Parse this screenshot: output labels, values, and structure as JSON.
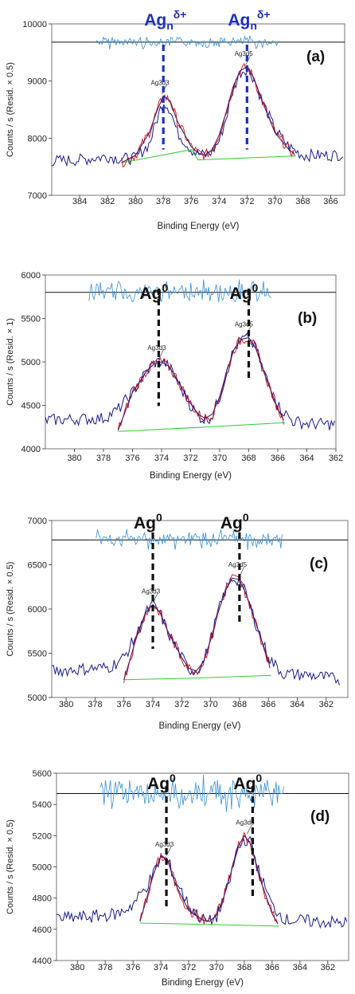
{
  "chart_data": [
    {
      "type": "line",
      "panel_label": "(a)",
      "xlabel": "Binding Energy (eV)",
      "ylabel": "Counts / s  (Resid. × 0.5)",
      "xlim": [
        386,
        365
      ],
      "ylim": [
        7000,
        10000
      ],
      "x_ticks": [
        384,
        382,
        380,
        378,
        376,
        374,
        372,
        370,
        368,
        366
      ],
      "y_ticks": [
        7000,
        8000,
        9000,
        10000
      ],
      "residual_baseline": 9680,
      "series": [
        {
          "role": "raw",
          "color": "#1a1a8c",
          "x": [
            386.0,
            384.0,
            382.0,
            381.0,
            380.0,
            379.0,
            378.5,
            378.0,
            377.5,
            377.0,
            376.0,
            375.5,
            375.0,
            374.5,
            374.0,
            373.5,
            373.0,
            372.5,
            372.0,
            371.5,
            371.0,
            370.0,
            369.0,
            368.0,
            366.0,
            365.0
          ],
          "y": [
            7600,
            7620,
            7680,
            7640,
            7650,
            7900,
            8300,
            8650,
            8500,
            8100,
            7800,
            7720,
            7700,
            7760,
            7950,
            8350,
            8850,
            9150,
            9220,
            9050,
            8700,
            8150,
            7850,
            7700,
            7700,
            7720
          ]
        },
        {
          "role": "envelope",
          "color": "#cc1111",
          "x": [
            381.0,
            380.0,
            379.0,
            378.5,
            378.0,
            377.5,
            377.0,
            376.0,
            375.5,
            375.0,
            374.5,
            374.0,
            373.5,
            373.0,
            372.5,
            372.0,
            371.5,
            371.0,
            370.0,
            369.0,
            368.5
          ],
          "y": [
            7570,
            7700,
            8100,
            8450,
            8740,
            8650,
            8300,
            7850,
            7740,
            7700,
            7800,
            8050,
            8450,
            8900,
            9180,
            9250,
            9050,
            8700,
            8100,
            7800,
            7700
          ]
        },
        {
          "role": "background",
          "color": "#33cc33",
          "x": [
            381.0,
            376.0,
            375.5,
            368.5
          ],
          "y": [
            7570,
            7800,
            7620,
            7690
          ]
        }
      ],
      "peaks": [
        {
          "label": "Ag3d3",
          "x": 378.1,
          "y": 8740
        },
        {
          "label": "Ag3d5",
          "x": 372.1,
          "y": 9250
        }
      ],
      "markers": [
        {
          "x": 378.0,
          "label_base": "Ag",
          "label_sub": "n",
          "label_sup": "δ+",
          "color": "#1f2fbf"
        },
        {
          "x": 372.0,
          "label_base": "Ag",
          "label_sub": "n",
          "label_sup": "δ+",
          "color": "#1f2fbf"
        }
      ]
    },
    {
      "type": "line",
      "panel_label": "(b)",
      "xlabel": "Binding Energy (eV)",
      "ylabel": "Counts / s  (Resid. × 1)",
      "xlim": [
        382,
        362
      ],
      "ylim": [
        4000,
        6000
      ],
      "x_ticks": [
        380,
        378,
        376,
        374,
        372,
        370,
        368,
        366,
        364,
        362
      ],
      "y_ticks": [
        4000,
        4500,
        5000,
        5500,
        6000
      ],
      "residual_baseline": 5800,
      "series": [
        {
          "role": "raw",
          "color": "#1a1a8c",
          "x": [
            382.0,
            380.0,
            378.0,
            377.0,
            376.0,
            375.0,
            374.5,
            374.0,
            373.5,
            373.0,
            372.0,
            371.5,
            371.0,
            370.5,
            370.0,
            369.5,
            369.0,
            368.5,
            368.0,
            367.5,
            367.0,
            366.0,
            365.0,
            364.0,
            362.0
          ],
          "y": [
            4330,
            4340,
            4350,
            4450,
            4650,
            4900,
            4990,
            5010,
            4950,
            4800,
            4500,
            4380,
            4330,
            4380,
            4600,
            4900,
            5150,
            5260,
            5270,
            5150,
            4900,
            4500,
            4320,
            4290,
            4280
          ]
        },
        {
          "role": "envelope",
          "color": "#cc1111",
          "x": [
            377.0,
            376.0,
            375.0,
            374.5,
            374.0,
            373.5,
            373.0,
            372.0,
            371.5,
            371.0,
            370.5,
            370.0,
            369.5,
            369.0,
            368.5,
            368.0,
            367.5,
            367.0,
            366.0,
            365.5
          ],
          "y": [
            4210,
            4650,
            4900,
            4980,
            5000,
            4950,
            4820,
            4520,
            4400,
            4350,
            4400,
            4600,
            4900,
            5150,
            5260,
            5280,
            5150,
            4900,
            4460,
            4300
          ]
        },
        {
          "role": "background",
          "color": "#33cc33",
          "x": [
            377.0,
            371.0,
            365.5
          ],
          "y": [
            4200,
            4250,
            4300
          ]
        }
      ],
      "peaks": [
        {
          "label": "Ag3d3",
          "x": 374.2,
          "y": 5010
        },
        {
          "label": "Ag3d5",
          "x": 368.2,
          "y": 5280
        }
      ],
      "markers": [
        {
          "x": 374.2,
          "label_base": "Ag",
          "label_sub": "",
          "label_sup": "0",
          "color": "#111111"
        },
        {
          "x": 368.0,
          "label_base": "Ag",
          "label_sub": "",
          "label_sup": "0",
          "color": "#111111"
        }
      ]
    },
    {
      "type": "line",
      "panel_label": "(c)",
      "xlabel": "Binding Energy (eV)",
      "ylabel": "Counts / s  (Resid. × 0.5)",
      "xlim": [
        381,
        360.5
      ],
      "ylim": [
        5000,
        7000
      ],
      "x_ticks": [
        380,
        378,
        376,
        374,
        372,
        370,
        368,
        366,
        364,
        362
      ],
      "y_ticks": [
        5000,
        5500,
        6000,
        6500,
        7000
      ],
      "residual_baseline": 6780,
      "series": [
        {
          "role": "raw",
          "color": "#1a1a8c",
          "x": [
            381.0,
            379.0,
            377.0,
            376.0,
            375.0,
            374.5,
            374.0,
            373.5,
            373.0,
            372.0,
            371.5,
            371.0,
            370.5,
            370.0,
            369.5,
            369.0,
            368.5,
            368.0,
            367.5,
            367.0,
            366.0,
            365.0,
            363.0,
            361.0
          ],
          "y": [
            5300,
            5320,
            5340,
            5450,
            5750,
            5950,
            6050,
            5950,
            5750,
            5450,
            5320,
            5300,
            5400,
            5650,
            5950,
            6200,
            6350,
            6320,
            6150,
            5900,
            5450,
            5270,
            5250,
            5200
          ]
        },
        {
          "role": "envelope",
          "color": "#cc1111",
          "x": [
            376.0,
            375.0,
            374.5,
            374.0,
            373.5,
            373.0,
            372.0,
            371.5,
            371.0,
            370.5,
            370.0,
            369.5,
            369.0,
            368.5,
            368.0,
            367.5,
            367.0,
            366.0,
            365.8
          ],
          "y": [
            5200,
            5750,
            5960,
            6050,
            5960,
            5760,
            5450,
            5330,
            5300,
            5400,
            5650,
            5950,
            6200,
            6350,
            6330,
            6150,
            5900,
            5420,
            5250
          ]
        },
        {
          "role": "background",
          "color": "#33cc33",
          "x": [
            376.0,
            371.0,
            365.8
          ],
          "y": [
            5200,
            5220,
            5250
          ]
        }
      ],
      "peaks": [
        {
          "label": "Ag3d3",
          "x": 374.0,
          "y": 6050
        },
        {
          "label": "Ag3d5",
          "x": 368.0,
          "y": 6350
        }
      ],
      "markers": [
        {
          "x": 374.0,
          "label_base": "Ag",
          "label_sub": "",
          "label_sup": "0",
          "color": "#111111"
        },
        {
          "x": 368.0,
          "label_base": "Ag",
          "label_sub": "",
          "label_sup": "0",
          "color": "#111111"
        }
      ]
    },
    {
      "type": "line",
      "panel_label": "(d)",
      "xlabel": "Binding Energy (eV)",
      "ylabel": "Counts / s  (Resid. × 0.5)",
      "xlim": [
        381.5,
        360.5
      ],
      "ylim": [
        4400,
        5600
      ],
      "x_ticks": [
        380,
        378,
        376,
        374,
        372,
        370,
        368,
        366,
        364,
        362
      ],
      "y_ticks": [
        4400,
        4600,
        4800,
        5000,
        5200,
        5400,
        5600
      ],
      "residual_baseline": 5470,
      "series": [
        {
          "role": "raw",
          "color": "#1a1a8c",
          "x": [
            381.5,
            379.0,
            377.0,
            376.0,
            375.0,
            374.5,
            374.0,
            373.5,
            373.0,
            372.0,
            371.0,
            370.5,
            370.0,
            369.5,
            369.0,
            368.5,
            368.0,
            367.5,
            367.0,
            366.0,
            365.0,
            363.0,
            360.5
          ],
          "y": [
            4670,
            4680,
            4700,
            4760,
            4880,
            4960,
            5060,
            5040,
            4930,
            4750,
            4660,
            4650,
            4680,
            4780,
            4930,
            5100,
            5180,
            5150,
            4980,
            4750,
            4660,
            4650,
            4640
          ]
        },
        {
          "role": "envelope",
          "color": "#cc1111",
          "x": [
            375.5,
            374.5,
            374.0,
            373.5,
            373.0,
            372.0,
            371.0,
            370.5,
            370.0,
            369.5,
            369.0,
            368.5,
            368.0,
            367.5,
            367.0,
            366.0,
            365.5
          ],
          "y": [
            4650,
            4960,
            5070,
            5040,
            4900,
            4720,
            4660,
            4650,
            4690,
            4800,
            4950,
            5120,
            5200,
            5140,
            4960,
            4700,
            4620
          ]
        },
        {
          "role": "background",
          "color": "#33cc33",
          "x": [
            375.5,
            370.0,
            365.5
          ],
          "y": [
            4640,
            4630,
            4620
          ]
        }
      ],
      "peaks": [
        {
          "label": "Ag3d3",
          "x": 373.6,
          "y": 5060
        },
        {
          "label": "Ag3d5",
          "x": 367.8,
          "y": 5200
        }
      ],
      "markers": [
        {
          "x": 373.6,
          "label_base": "Ag",
          "label_sub": "",
          "label_sup": "0",
          "color": "#111111"
        },
        {
          "x": 367.4,
          "label_base": "Ag",
          "label_sub": "",
          "label_sup": "0",
          "color": "#111111"
        }
      ]
    }
  ]
}
